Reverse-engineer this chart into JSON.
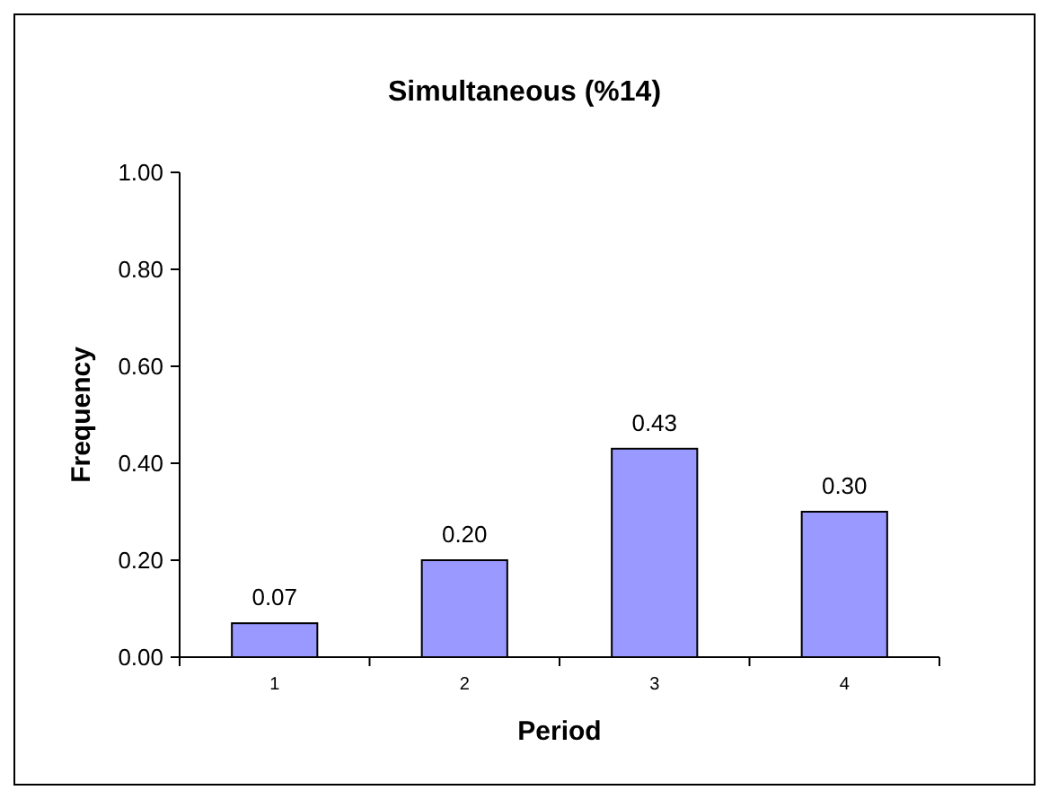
{
  "chart_data": {
    "type": "bar",
    "title": "Simultaneous (%14)",
    "xlabel": "Period",
    "ylabel": "Frequency",
    "categories": [
      "1",
      "2",
      "3",
      "4"
    ],
    "values": [
      0.07,
      0.2,
      0.43,
      0.3
    ],
    "value_labels": [
      "0.07",
      "0.20",
      "0.43",
      "0.30"
    ],
    "color": "#9999ff",
    "ylim": [
      0,
      1
    ],
    "yticks": [
      {
        "value": 0,
        "label": "0.00"
      },
      {
        "value": 0.2,
        "label": "0.20"
      },
      {
        "value": 0.4,
        "label": "0.40"
      },
      {
        "value": 0.6,
        "label": "0.60"
      },
      {
        "value": 0.8,
        "label": "0.80"
      },
      {
        "value": 1,
        "label": "1.00"
      }
    ],
    "grid": false
  }
}
